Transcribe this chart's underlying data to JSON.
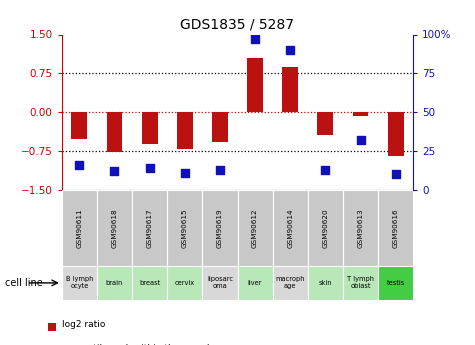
{
  "title": "GDS1835 / 5287",
  "samples": [
    "GSM90611",
    "GSM90618",
    "GSM90617",
    "GSM90615",
    "GSM90619",
    "GSM90612",
    "GSM90614",
    "GSM90620",
    "GSM90613",
    "GSM90616"
  ],
  "cell_lines": [
    "B lymph\nocyte",
    "brain",
    "breast",
    "cervix",
    "liposarc\noma",
    "liver",
    "macroph\nage",
    "skin",
    "T lymph\noblast",
    "testis"
  ],
  "cell_colors": [
    "#d8d8d8",
    "#b8e8b8",
    "#b8e8b8",
    "#b8e8b8",
    "#d8d8d8",
    "#b8e8b8",
    "#d8d8d8",
    "#b8e8b8",
    "#b8e8b8",
    "#44cc44"
  ],
  "log2_ratio": [
    -0.52,
    -0.78,
    -0.62,
    -0.72,
    -0.58,
    1.05,
    0.88,
    -0.45,
    -0.08,
    -0.85
  ],
  "percentile_rank": [
    16,
    12,
    14,
    11,
    13,
    97,
    90,
    13,
    32,
    10
  ],
  "ylim_left": [
    -1.5,
    1.5
  ],
  "ylim_right": [
    0,
    100
  ],
  "yticks_left": [
    -1.5,
    -0.75,
    0,
    0.75,
    1.5
  ],
  "yticks_right": [
    0,
    25,
    50,
    75,
    100
  ],
  "bar_color": "#bb1111",
  "dot_color": "#1111bb",
  "hline_color": "#cc0000",
  "grid_color": "#000000",
  "bar_width": 0.45,
  "dot_size": 28
}
